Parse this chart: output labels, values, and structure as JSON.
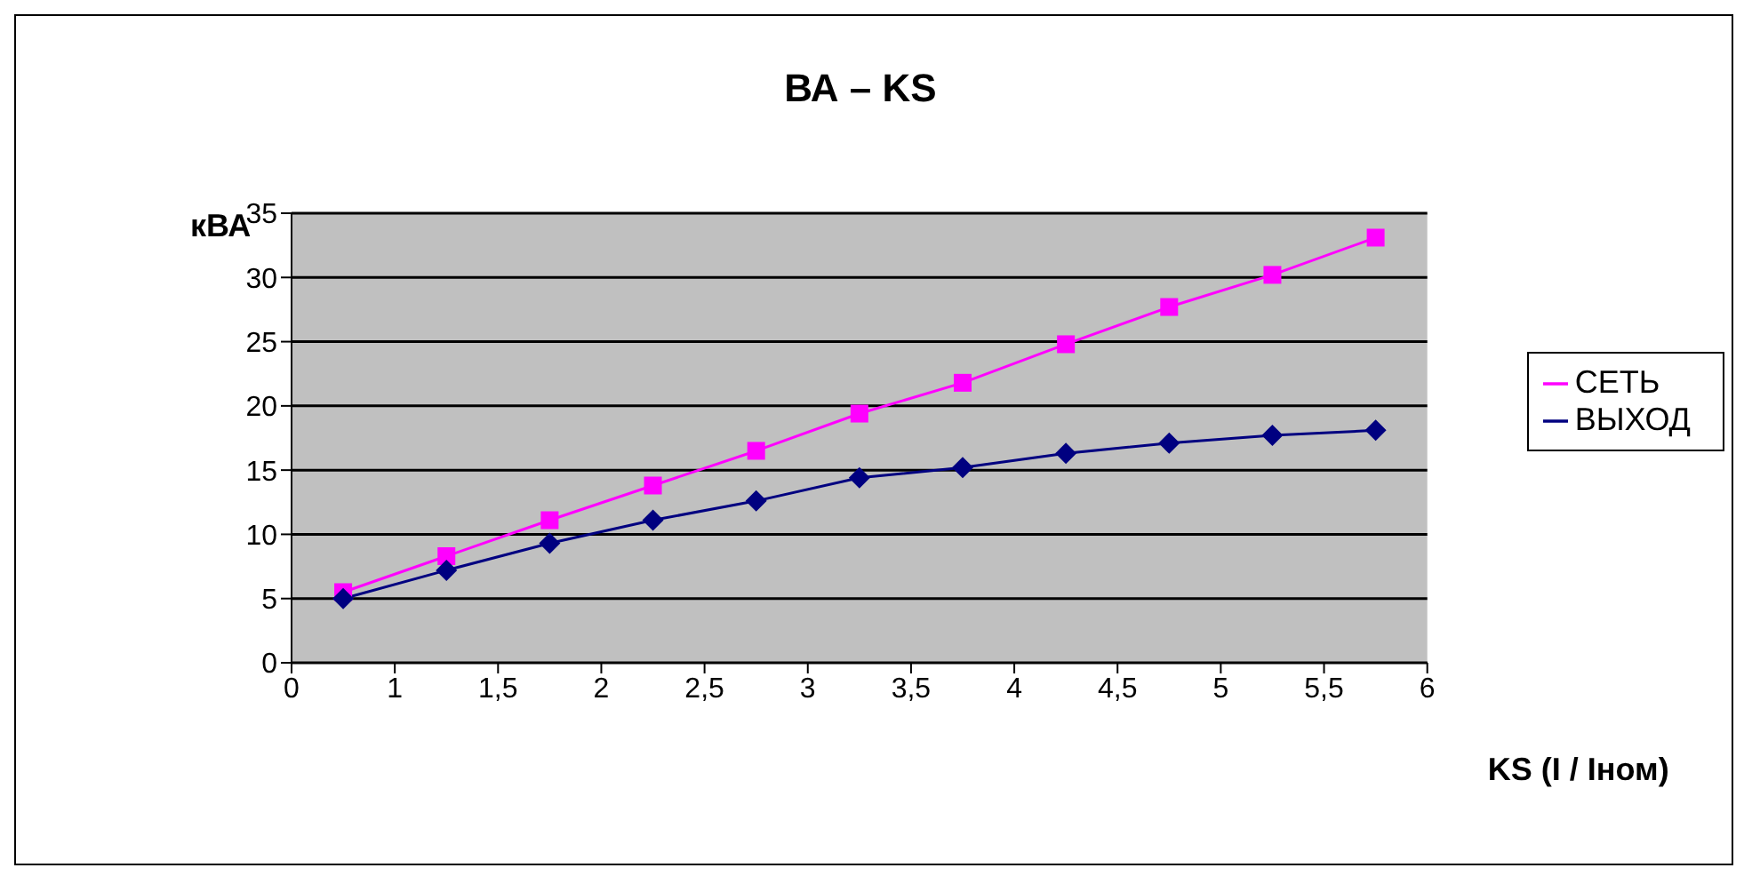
{
  "chart_data": {
    "type": "line",
    "title": "ВА – KS",
    "xlabel": "KS (I / Iном)",
    "ylabel": "кВА",
    "x": [
      0.75,
      1.25,
      1.75,
      2.25,
      2.75,
      3.25,
      3.75,
      4.25,
      4.75,
      5.25,
      5.75
    ],
    "series": [
      {
        "name": "СЕТЬ",
        "color": "#ff00ff",
        "marker": "square",
        "values": [
          5.5,
          8.3,
          11.1,
          13.8,
          16.5,
          19.4,
          21.8,
          24.8,
          27.7,
          30.2,
          33.1
        ]
      },
      {
        "name": "ВЫХОД",
        "color": "#000080",
        "marker": "diamond",
        "values": [
          5.0,
          7.2,
          9.3,
          11.1,
          12.6,
          14.4,
          15.2,
          16.3,
          17.1,
          17.7,
          18.1
        ]
      }
    ],
    "xlim": [
      0.5,
      6
    ],
    "xticks": [
      {
        "value": 0.5,
        "label": "0"
      },
      {
        "value": 1,
        "label": "1"
      },
      {
        "value": 1.5,
        "label": "1,5"
      },
      {
        "value": 2,
        "label": "2"
      },
      {
        "value": 2.5,
        "label": "2,5"
      },
      {
        "value": 3,
        "label": "3"
      },
      {
        "value": 3.5,
        "label": "3,5"
      },
      {
        "value": 4,
        "label": "4"
      },
      {
        "value": 4.5,
        "label": "4,5"
      },
      {
        "value": 5,
        "label": "5"
      },
      {
        "value": 5.5,
        "label": "5,5"
      },
      {
        "value": 6,
        "label": "6"
      }
    ],
    "ylim": [
      0,
      35
    ],
    "yticks": [
      0,
      5,
      10,
      15,
      20,
      25,
      30,
      35
    ],
    "grid": "y",
    "legend": "right",
    "line_style": "solid"
  }
}
